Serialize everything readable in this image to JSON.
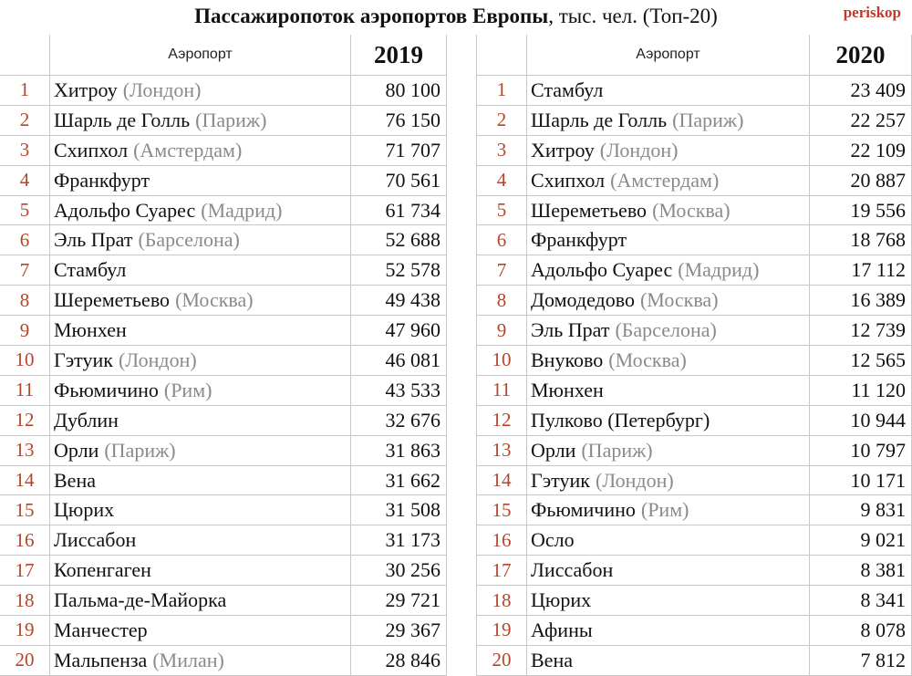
{
  "title": {
    "bold": "Пассажиропоток аэропортов Европы",
    "rest": ", тыс. чел.  (Топ-20)"
  },
  "brand": "periskop",
  "left": {
    "airport_header": "Аэропорт",
    "year": "2019",
    "rows": [
      {
        "rank": "1",
        "name": "Хитроу",
        "city": "(Лондон)",
        "value": "80 100"
      },
      {
        "rank": "2",
        "name": "Шарль де Голль",
        "city": "(Париж)",
        "value": "76 150"
      },
      {
        "rank": "3",
        "name": "Схипхол",
        "city": "(Амстердам)",
        "value": "71 707"
      },
      {
        "rank": "4",
        "name": "Франкфурт",
        "city": "",
        "value": "70 561"
      },
      {
        "rank": "5",
        "name": "Адольфо Суарес",
        "city": "(Мадрид)",
        "value": "61 734"
      },
      {
        "rank": "6",
        "name": "Эль Прат",
        "city": "(Барселона)",
        "value": "52 688"
      },
      {
        "rank": "7",
        "name": "Стамбул",
        "city": "",
        "value": "52 578"
      },
      {
        "rank": "8",
        "name": "Шереметьево",
        "city": "(Москва)",
        "value": "49 438"
      },
      {
        "rank": "9",
        "name": "Мюнхен",
        "city": "",
        "value": "47 960"
      },
      {
        "rank": "10",
        "name": "Гэтуик",
        "city": "(Лондон)",
        "value": "46 081"
      },
      {
        "rank": "11",
        "name": "Фьюмичино",
        "city": "(Рим)",
        "value": "43 533"
      },
      {
        "rank": "12",
        "name": "Дублин",
        "city": "",
        "value": "32 676"
      },
      {
        "rank": "13",
        "name": "Орли",
        "city": "(Париж)",
        "value": "31 863"
      },
      {
        "rank": "14",
        "name": "Вена",
        "city": "",
        "value": "31 662"
      },
      {
        "rank": "15",
        "name": "Цюрих",
        "city": "",
        "value": "31 508"
      },
      {
        "rank": "16",
        "name": "Лиссабон",
        "city": "",
        "value": "31 173"
      },
      {
        "rank": "17",
        "name": "Копенгаген",
        "city": "",
        "value": "30 256"
      },
      {
        "rank": "18",
        "name": "Пальма-де-Майорка",
        "city": "",
        "value": "29 721"
      },
      {
        "rank": "19",
        "name": "Манчестер",
        "city": "",
        "value": "29 367"
      },
      {
        "rank": "20",
        "name": "Мальпенза",
        "city": "(Милан)",
        "value": "28 846"
      }
    ]
  },
  "right": {
    "airport_header": "Аэропорт",
    "year": "2020",
    "rows": [
      {
        "rank": "1",
        "name": "Стамбул",
        "city": "",
        "value": "23 409"
      },
      {
        "rank": "2",
        "name": "Шарль де Голль",
        "city": "(Париж)",
        "value": "22 257"
      },
      {
        "rank": "3",
        "name": "Хитроу",
        "city": "(Лондон)",
        "value": "22 109"
      },
      {
        "rank": "4",
        "name": "Схипхол",
        "city": "(Амстердам)",
        "value": "20 887"
      },
      {
        "rank": "5",
        "name": "Шереметьево",
        "city": "(Москва)",
        "value": "19 556"
      },
      {
        "rank": "6",
        "name": "Франкфурт",
        "city": "",
        "value": "18 768"
      },
      {
        "rank": "7",
        "name": "Адольфо Суарес",
        "city": "(Мадрид)",
        "value": "17 112"
      },
      {
        "rank": "8",
        "name": "Домодедово",
        "city": "(Москва)",
        "value": "16 389"
      },
      {
        "rank": "9",
        "name": "Эль Прат",
        "city": "(Барселона)",
        "value": "12 739"
      },
      {
        "rank": "10",
        "name": "Внуково",
        "city": "(Москва)",
        "value": "12 565"
      },
      {
        "rank": "11",
        "name": "Мюнхен",
        "city": "",
        "value": "11 120"
      },
      {
        "rank": "12",
        "name": "Пулково (Петербург)",
        "city": "",
        "value": "10 944"
      },
      {
        "rank": "13",
        "name": "Орли",
        "city": "(Париж)",
        "value": "10 797"
      },
      {
        "rank": "14",
        "name": "Гэтуик",
        "city": "(Лондон)",
        "value": "10 171"
      },
      {
        "rank": "15",
        "name": "Фьюмичино",
        "city": "(Рим)",
        "value": "9 831"
      },
      {
        "rank": "16",
        "name": "Осло",
        "city": "",
        "value": "9 021"
      },
      {
        "rank": "17",
        "name": "Лиссабон",
        "city": "",
        "value": "8 381"
      },
      {
        "rank": "18",
        "name": "Цюрих",
        "city": "",
        "value": "8 341"
      },
      {
        "rank": "19",
        "name": "Афины",
        "city": "",
        "value": "8 078"
      },
      {
        "rank": "20",
        "name": "Вена",
        "city": "",
        "value": "7 812"
      }
    ]
  }
}
